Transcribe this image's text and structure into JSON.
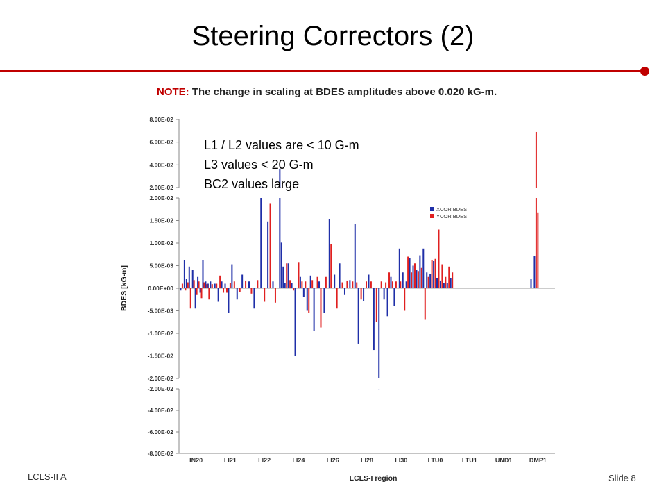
{
  "slide": {
    "title": "Steering Correctors (2)",
    "footer_left": "LCLS-II A",
    "footer_right": "Slide 8"
  },
  "overlay_lines": [
    "L1 / L2 values are < 10 G-m",
    "L3 values < 20 G-m",
    "BC2 values large"
  ],
  "colors": {
    "accent": "#c00000",
    "xcor": "#1f2fa8",
    "ycor": "#e02020"
  },
  "chart_data": {
    "type": "bar",
    "note_key": "NOTE:",
    "note_text": " The change in scaling at BDES amplitudes above 0.020 kG-m.",
    "xlabel": "LCLS-I region",
    "ylabel": "BDES [kG-m]",
    "categories": [
      "IN20",
      "LI21",
      "LI22",
      "LI24",
      "LI26",
      "LI28",
      "LI30",
      "LTU0",
      "LTU1",
      "UND1",
      "DMP1"
    ],
    "panels": [
      {
        "ylim": [
          0.02,
          0.08
        ],
        "ticks": [
          "8.00E-02",
          "6.00E-02",
          "4.00E-02",
          "2.00E-02"
        ]
      },
      {
        "ylim": [
          -0.02,
          0.02
        ],
        "ticks": [
          "2.00E-02",
          "1.50E-02",
          "1.00E-02",
          "5.00E-03",
          "0.00E+00",
          "-5.00E-03",
          "-1.00E-02",
          "-1.50E-02",
          "-2.00E-02"
        ]
      },
      {
        "ylim": [
          -0.08,
          -0.02
        ],
        "ticks": [
          "-2.00E-02",
          "-4.00E-02",
          "-6.00E-02",
          "-8.00E-02"
        ]
      }
    ],
    "legend": {
      "position": "top-right",
      "entries": [
        "XCOR BDES",
        "YCOR BDES"
      ]
    },
    "series": [
      {
        "name": "XCOR BDES",
        "x": [
          0.05,
          0.16,
          0.22,
          0.3,
          0.4,
          0.48,
          0.55,
          0.62,
          0.7,
          0.78,
          0.85,
          0.92,
          1.05,
          1.15,
          1.25,
          1.35,
          1.45,
          1.55,
          1.7,
          1.85,
          2.05,
          2.2,
          2.4,
          2.6,
          2.75,
          2.95,
          3.0,
          3.05,
          3.1,
          3.2,
          3.3,
          3.4,
          3.55,
          3.65,
          3.75,
          3.85,
          3.95,
          4.1,
          4.25,
          4.4,
          4.55,
          4.7,
          4.85,
          5.0,
          5.15,
          5.25,
          5.4,
          5.55,
          5.7,
          5.85,
          6.0,
          6.1,
          6.2,
          6.3,
          6.45,
          6.55,
          6.65,
          6.75,
          6.85,
          6.95,
          7.05,
          7.15,
          7.25,
          7.35,
          7.45,
          7.55,
          7.65,
          7.75,
          7.85,
          7.95,
          10.3,
          10.4
        ],
        "values": [
          -0.0005,
          0.0062,
          0.002,
          0.0048,
          0.004,
          -0.0045,
          0.0025,
          -0.001,
          0.0062,
          0.0015,
          0.001,
          0.0015,
          0.001,
          -0.003,
          0.0015,
          0.001,
          -0.0055,
          0.0053,
          -0.0025,
          0.003,
          0.0015,
          -0.0045,
          0.0202,
          0.0148,
          0.0015,
          0.036,
          0.0101,
          0.0048,
          0.0011,
          0.0055,
          0.0012,
          -0.015,
          0.0025,
          -0.002,
          -0.005,
          0.0028,
          -0.0095,
          0.0015,
          -0.0055,
          0.0153,
          0.003,
          0.0055,
          -0.0015,
          0.0018,
          0.0143,
          -0.0123,
          -0.0028,
          0.003,
          -0.0137,
          -0.0201,
          -0.0025,
          -0.0062,
          0.0025,
          -0.004,
          0.0088,
          0.0035,
          0.0015,
          0.0067,
          0.005,
          0.004,
          0.0073,
          0.0088,
          0.0035,
          0.0032,
          0.006,
          0.0022,
          0.0017,
          0.0012,
          0.0011,
          0.0022,
          0.002,
          0.0072
        ]
      },
      {
        "name": "YCOR BDES",
        "x": [
          0.1,
          0.19,
          0.26,
          0.34,
          0.44,
          0.52,
          0.58,
          0.66,
          0.74,
          0.82,
          0.88,
          0.97,
          1.1,
          1.2,
          1.3,
          1.4,
          1.5,
          1.62,
          1.78,
          1.95,
          2.12,
          2.3,
          2.5,
          2.67,
          2.82,
          3.15,
          3.25,
          3.35,
          3.5,
          3.6,
          3.7,
          3.8,
          3.9,
          4.05,
          4.15,
          4.3,
          4.45,
          4.62,
          4.78,
          4.92,
          5.08,
          5.2,
          5.33,
          5.48,
          5.62,
          5.78,
          5.92,
          6.05,
          6.15,
          6.25,
          6.35,
          6.48,
          6.6,
          6.7,
          6.8,
          6.9,
          7.0,
          7.1,
          7.2,
          7.3,
          7.4,
          7.5,
          7.6,
          7.7,
          7.8,
          7.9,
          8.0,
          10.45,
          10.5
        ],
        "values": [
          0.001,
          -0.0005,
          0.0013,
          -0.0045,
          0.0018,
          -0.0015,
          0.0015,
          -0.0022,
          0.0013,
          0.0009,
          -0.0025,
          0.0009,
          0.001,
          0.0028,
          -0.001,
          -0.001,
          0.0012,
          0.0015,
          -0.0008,
          0.0017,
          -0.0012,
          0.0018,
          -0.003,
          0.0187,
          -0.0032,
          0.0055,
          0.0018,
          -0.0005,
          0.0058,
          0.0015,
          0.0015,
          -0.0055,
          0.0018,
          0.0025,
          -0.0087,
          0.0025,
          0.0097,
          -0.0045,
          0.0013,
          0.0017,
          0.0015,
          0.0013,
          -0.0025,
          0.0015,
          0.0015,
          -0.0075,
          0.0015,
          0.0013,
          0.0035,
          0.0015,
          0.0015,
          0.0015,
          -0.005,
          0.007,
          0.0035,
          0.0055,
          0.0038,
          0.0045,
          -0.007,
          0.0025,
          0.0063,
          0.0065,
          0.013,
          0.0053,
          0.0025,
          0.0048,
          0.0035,
          0.069,
          0.0168
        ]
      }
    ]
  }
}
